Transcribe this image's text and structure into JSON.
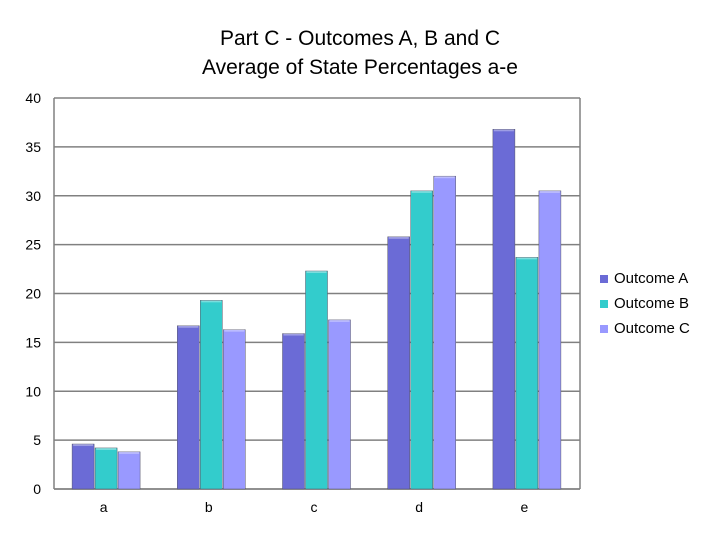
{
  "chart_data": {
    "type": "bar",
    "title": "Part C - Outcomes A, B and C",
    "subtitle": "Average of State Percentages a-e",
    "xlabel": "",
    "ylabel": "",
    "categories": [
      "a",
      "b",
      "c",
      "d",
      "e"
    ],
    "ylim": [
      0,
      40
    ],
    "yticks": [
      0,
      5,
      10,
      15,
      20,
      25,
      30,
      35,
      40
    ],
    "grid": true,
    "legend_position": "right",
    "series": [
      {
        "name": "Outcome A",
        "color": "#6b6bd6",
        "values": [
          4.6,
          16.7,
          15.9,
          25.8,
          36.8
        ]
      },
      {
        "name": "Outcome B",
        "color": "#33cccc",
        "values": [
          4.2,
          19.3,
          22.3,
          30.5,
          23.7
        ]
      },
      {
        "name": "Outcome C",
        "color": "#9999ff",
        "values": [
          3.8,
          16.3,
          17.3,
          32.0,
          30.5
        ]
      }
    ]
  }
}
